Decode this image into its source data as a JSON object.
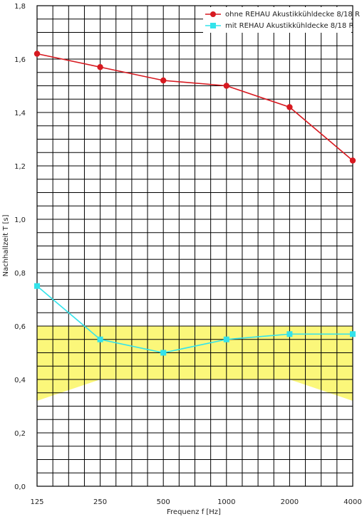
{
  "chart_data": {
    "type": "line",
    "xlabel": "Frequenz f [Hz]",
    "ylabel": "Nachhallzeit T [s]",
    "categories": [
      "125",
      "250",
      "500",
      "1000",
      "2000",
      "4000"
    ],
    "y_ticks": [
      "0,0",
      "0,2",
      "0,4",
      "0,6",
      "0,8",
      "1,0",
      "1,2",
      "1,4",
      "1,6",
      "1,8"
    ],
    "ylim": [
      0,
      1.8
    ],
    "grid": true,
    "legend_position": "top-right",
    "series": [
      {
        "name": "ohne REHAU Akustikkühldecke 8/18 R",
        "color": "#d71920",
        "marker": "circle",
        "values": [
          1.62,
          1.57,
          1.52,
          1.5,
          1.42,
          1.22
        ]
      },
      {
        "name": "mit REHAU Akustikkühldecke 8/18 R",
        "color": "#33e3eb",
        "marker": "square",
        "values": [
          0.75,
          0.55,
          0.5,
          0.55,
          0.57,
          0.57
        ]
      }
    ],
    "tolerance_band": {
      "color": "#fbf77a",
      "upper": [
        0.6,
        0.6,
        0.6,
        0.6,
        0.6,
        0.6
      ],
      "lower": [
        0.32,
        0.4,
        0.4,
        0.4,
        0.4,
        0.32
      ]
    }
  }
}
